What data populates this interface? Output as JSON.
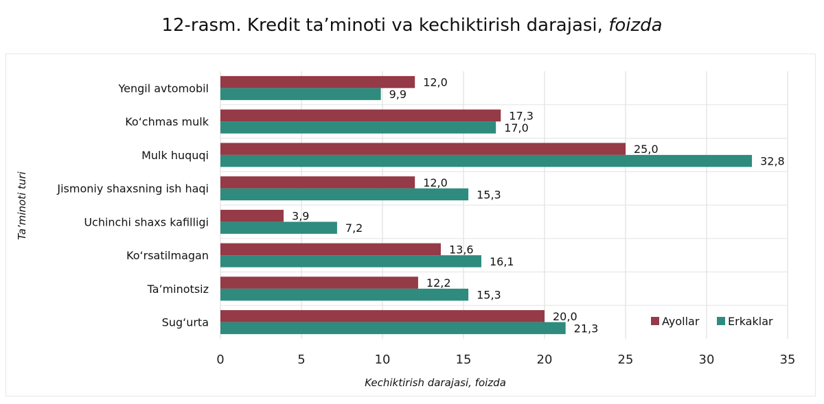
{
  "title": {
    "number": "12-rasm.",
    "main": "Kredit ta’minoti va kechiktirish darajasi,",
    "unit": "foizda"
  },
  "chart_data": {
    "type": "bar",
    "orientation": "horizontal",
    "categories": [
      "Yengil avtomobil",
      "Ko‘chmas mulk",
      "Mulk huquqi",
      "Jismoniy shaxsning ish haqi",
      "Uchinchi shaxs kafilligi",
      "Ko‘rsatilmagan",
      "Ta’minotsiz",
      "Sug‘urta"
    ],
    "series": [
      {
        "name": "Ayollar",
        "color": "#953a47",
        "values": [
          12.0,
          17.3,
          25.0,
          12.0,
          3.9,
          13.6,
          12.2,
          20.0
        ],
        "labels": [
          "12,0",
          "17,3",
          "25,0",
          "12,0",
          "3,9",
          "13,6",
          "12,2",
          "20,0"
        ]
      },
      {
        "name": "Erkaklar",
        "color": "#2e8b7d",
        "values": [
          9.9,
          17.0,
          32.8,
          15.3,
          7.2,
          16.1,
          15.3,
          21.3
        ],
        "labels": [
          "9,9",
          "17,0",
          "32,8",
          "15,3",
          "7,2",
          "16,1",
          "15,3",
          "21,3"
        ]
      }
    ],
    "xlabel": "Kechiktirish darajasi, foizda",
    "ylabel": "Ta’minoti turi",
    "xlim": [
      0,
      35
    ],
    "xticks": [
      0,
      5,
      10,
      15,
      20,
      25,
      30,
      35
    ],
    "grid": true,
    "legend_position": "bottom-right"
  }
}
